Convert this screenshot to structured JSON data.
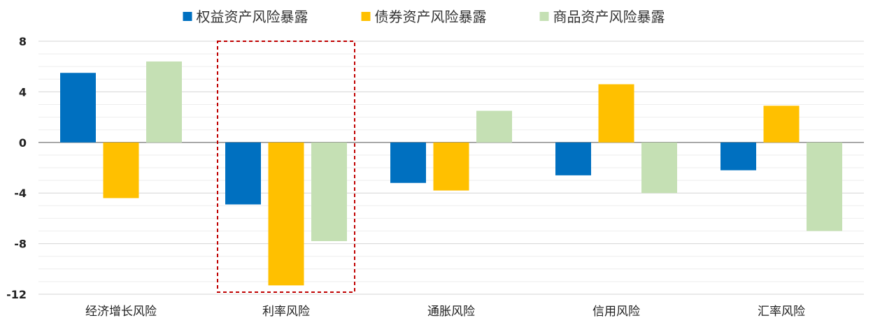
{
  "chart_data": {
    "type": "bar",
    "title": "",
    "xlabel": "",
    "ylabel": "",
    "ylim": [
      -12,
      8
    ],
    "yticks": [
      8,
      4,
      0,
      -4,
      -8,
      -12
    ],
    "ytick_labels": [
      "8",
      "4",
      "0",
      "-4",
      "-8",
      "-12"
    ],
    "categories": [
      "经济增长风险",
      "利率风险",
      "通胀风险",
      "信用风险",
      "汇率风险"
    ],
    "series": [
      {
        "name": "权益资产风险暴露",
        "color": "#0070C0",
        "values": [
          5.5,
          -4.9,
          -3.2,
          -2.6,
          -2.2
        ]
      },
      {
        "name": "债券资产风险暴露",
        "color": "#FFC000",
        "values": [
          -4.4,
          -11.3,
          -3.8,
          4.6,
          2.9
        ]
      },
      {
        "name": "商品资产风险暴露",
        "color": "#C5E0B4",
        "values": [
          6.4,
          -7.8,
          2.5,
          -4.0,
          -7.0
        ]
      }
    ],
    "legend_position": "top",
    "grid": true,
    "highlight_category": "利率风险",
    "highlight_color": "#C00000"
  }
}
